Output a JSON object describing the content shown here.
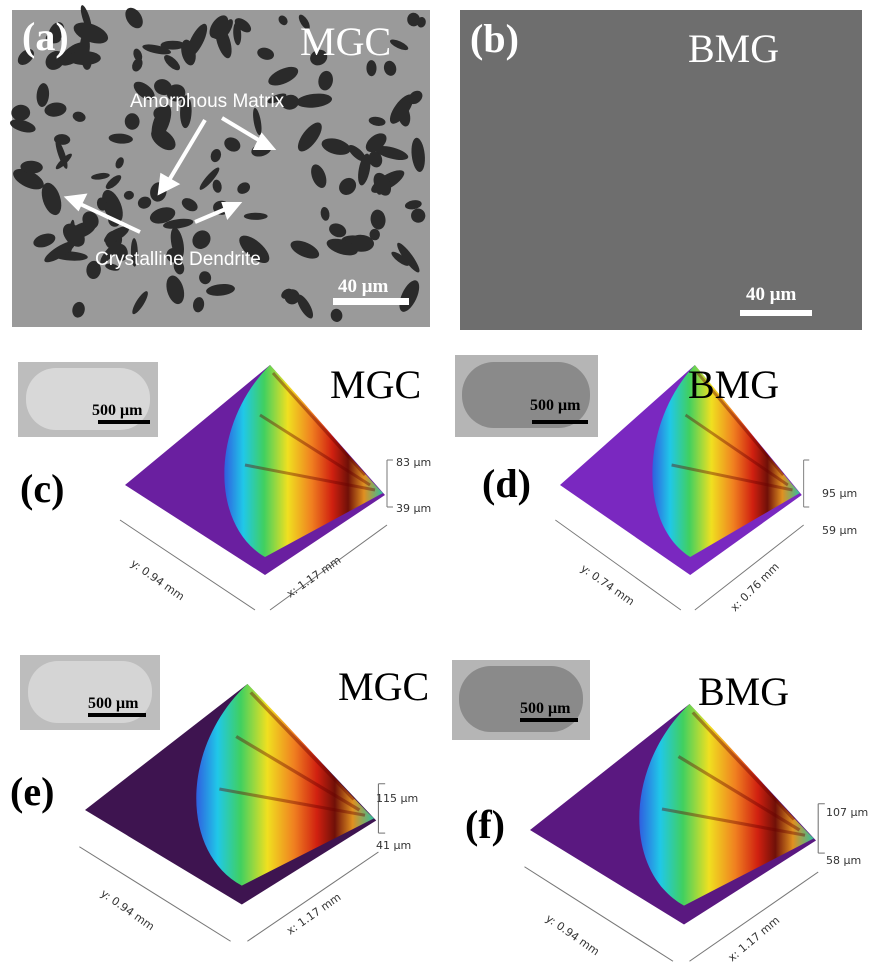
{
  "panels": [
    {
      "label": "(a)",
      "material": "MGC",
      "annotations": [
        "Amorphous Matrix",
        "Crystalline Dendrite"
      ],
      "scale_bar": "40 μm"
    },
    {
      "label": "(b)",
      "material": "BMG",
      "scale_bar": "40 μm"
    },
    {
      "label": "(c)",
      "material": "MGC",
      "inset_scale_bar": "500 μm",
      "z_max": "83 μm",
      "z_min": "39 μm",
      "y_extent": "y: 0.94 mm",
      "x_extent": "x: 1.17 mm"
    },
    {
      "label": "(d)",
      "material": "BMG",
      "inset_scale_bar": "500 μm",
      "z_max": "95 μm",
      "z_min": "59 μm",
      "y_extent": "y: 0.74 mm",
      "x_extent": "x: 0.76 mm"
    },
    {
      "label": "(e)",
      "material": "MGC",
      "inset_scale_bar": "500 μm",
      "z_max": "115 μm",
      "z_min": "41 μm",
      "y_extent": "y: 0.94 mm",
      "x_extent": "x: 1.17 mm"
    },
    {
      "label": "(f)",
      "material": "BMG",
      "inset_scale_bar": "500 μm",
      "z_max": "107 μm",
      "z_min": "58 μm",
      "y_extent": "y: 0.94 mm",
      "x_extent": "x: 1.17 mm"
    }
  ]
}
